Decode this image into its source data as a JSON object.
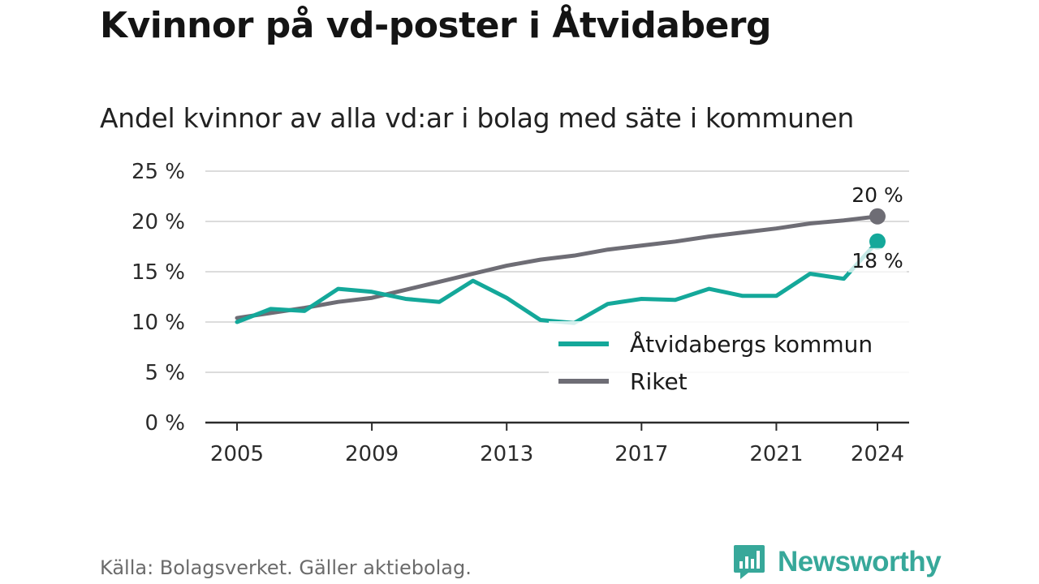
{
  "header": {
    "title": "Kvinnor på vd-poster i Åtvidaberg",
    "subtitle": "Andel kvinnor av alla vd:ar i bolag med säte i kommunen"
  },
  "footer": {
    "source": "Källa: Bolagsverket. Gäller aktiebolag.",
    "brand": "Newsworthy"
  },
  "colors": {
    "kommun": "#14a89a",
    "riket": "#6e6d75",
    "grid": "#dcdcdc",
    "axis": "#2b2b2b",
    "brand": "#37a89a"
  },
  "chart_data": {
    "type": "line",
    "title": "Kvinnor på vd-poster i Åtvidaberg",
    "subtitle": "Andel kvinnor av alla vd:ar i bolag med säte i kommunen",
    "x": [
      2005,
      2006,
      2007,
      2008,
      2009,
      2010,
      2011,
      2012,
      2013,
      2014,
      2015,
      2016,
      2017,
      2018,
      2019,
      2020,
      2021,
      2022,
      2023,
      2024
    ],
    "series": [
      {
        "name": "Åtvidabergs kommun",
        "color": "#14a89a",
        "values": [
          10.0,
          11.3,
          11.1,
          13.3,
          13.0,
          12.3,
          12.0,
          14.1,
          12.4,
          10.2,
          9.9,
          11.8,
          12.3,
          12.2,
          13.3,
          12.6,
          12.6,
          14.8,
          14.3,
          18.0
        ],
        "end_label": "18 %"
      },
      {
        "name": "Riket",
        "color": "#6e6d75",
        "values": [
          10.4,
          10.9,
          11.4,
          12.0,
          12.4,
          13.2,
          14.0,
          14.8,
          15.6,
          16.2,
          16.6,
          17.2,
          17.6,
          18.0,
          18.5,
          18.9,
          19.3,
          19.8,
          20.1,
          20.5
        ],
        "end_label": "20 %"
      }
    ],
    "yticks": [
      {
        "value": 0,
        "label": "0 %"
      },
      {
        "value": 5,
        "label": "5 %"
      },
      {
        "value": 10,
        "label": "10 %"
      },
      {
        "value": 15,
        "label": "15 %"
      },
      {
        "value": 20,
        "label": "20 %"
      },
      {
        "value": 25,
        "label": "25 %"
      }
    ],
    "xticks": [
      {
        "value": 2005,
        "label": "2005"
      },
      {
        "value": 2009,
        "label": "2009"
      },
      {
        "value": 2013,
        "label": "2013"
      },
      {
        "value": 2017,
        "label": "2017"
      },
      {
        "value": 2021,
        "label": "2021"
      },
      {
        "value": 2024,
        "label": "2024"
      }
    ],
    "ylim": [
      0,
      25
    ],
    "xlim": [
      2005,
      2024
    ],
    "grid": true,
    "legend_position": "lower-right"
  }
}
